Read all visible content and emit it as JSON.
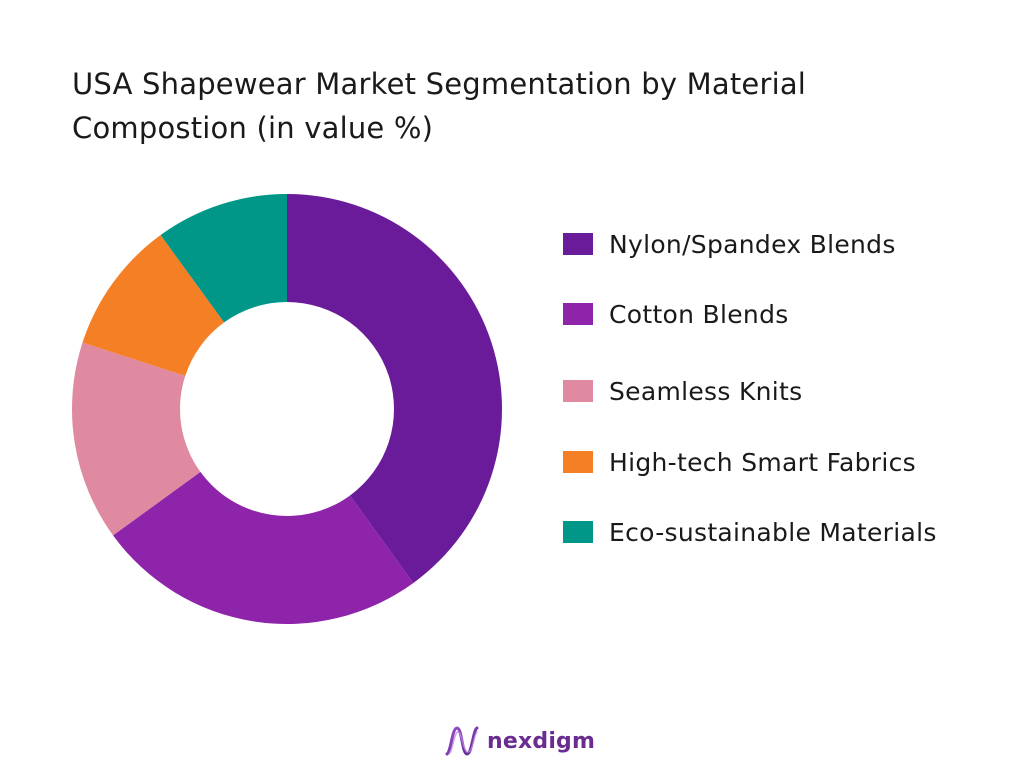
{
  "chart_data": {
    "type": "pie",
    "title": "USA Shapewear Market Segmentation by Material Compostion (in value %)",
    "donut": true,
    "legend_position": "right",
    "categories": [
      "Nylon/Spandex Blends",
      "Cotton Blends",
      "Seamless Knits",
      "High-tech Smart Fabrics",
      "Eco-sustainable Materials"
    ],
    "values": [
      40,
      25,
      15,
      10,
      10
    ],
    "colors": [
      "#6a1b9a",
      "#8e24aa",
      "#df8aa0",
      "#f57f25",
      "#009688"
    ]
  },
  "brand": {
    "name": "nexdigm",
    "name_color": "#6a2c91",
    "logo_icon": "nexdigm-wave-logo"
  }
}
